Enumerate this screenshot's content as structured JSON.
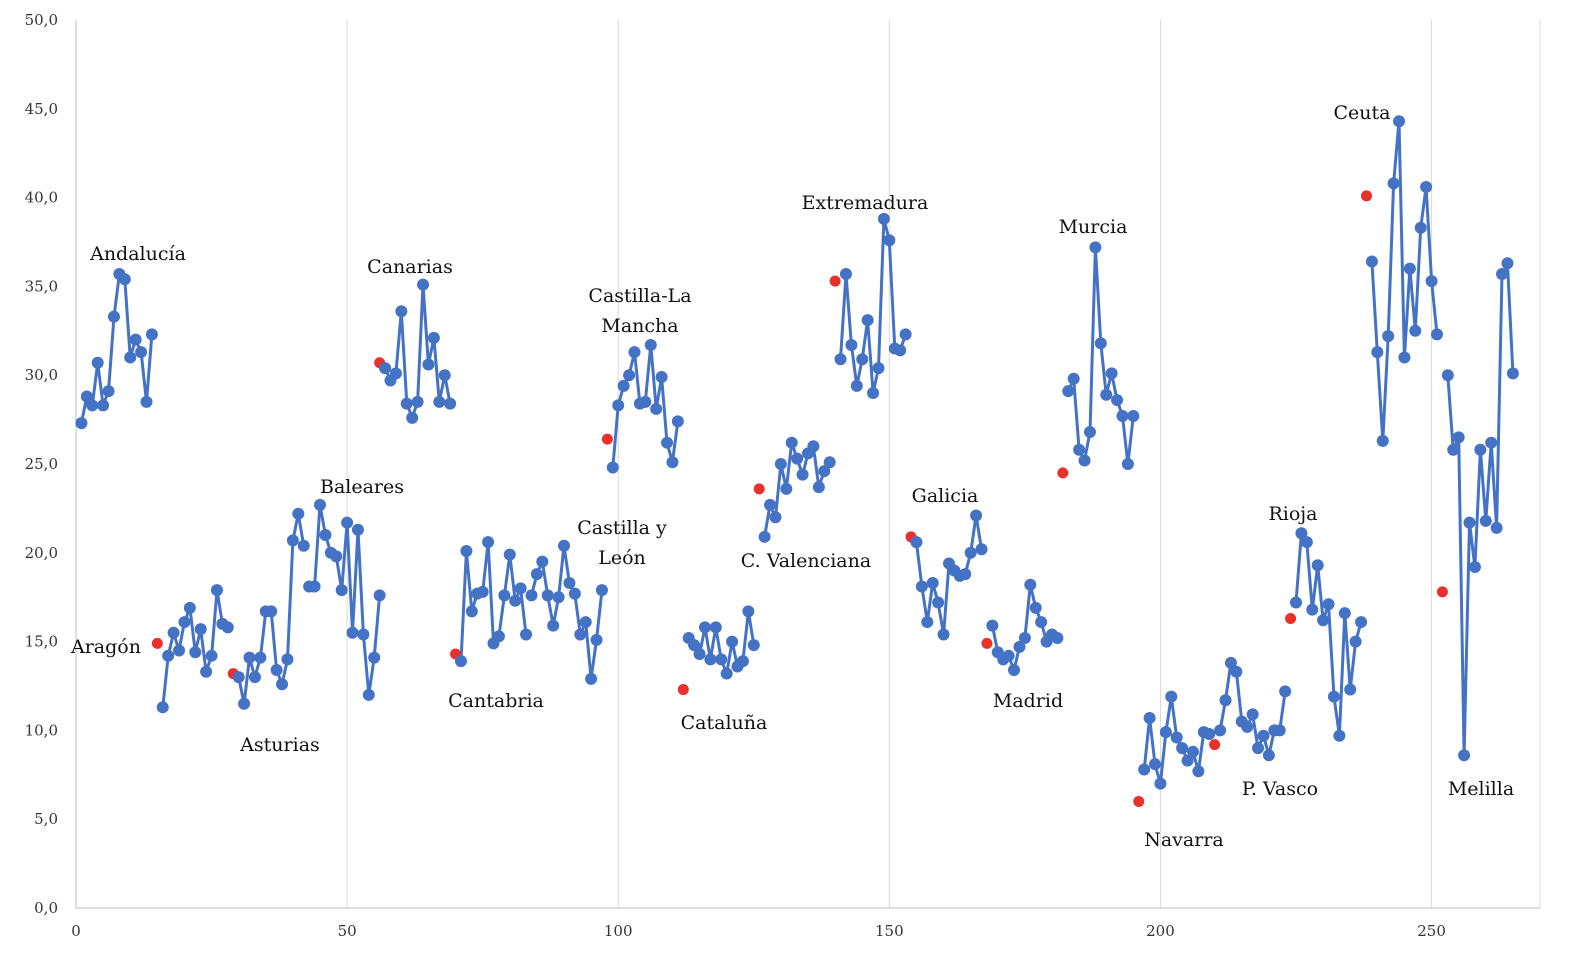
{
  "chart_data": {
    "type": "line",
    "xlim": [
      0,
      270
    ],
    "ylim": [
      0,
      50
    ],
    "xticks": [
      0,
      50,
      100,
      150,
      200,
      250
    ],
    "yticks": [
      0,
      5,
      10,
      15,
      20,
      25,
      30,
      35,
      40,
      45,
      50
    ],
    "ytick_labels": [
      "0,0",
      "5,0",
      "10,0",
      "15,0",
      "20,0",
      "25,0",
      "30,0",
      "35,0",
      "40,0",
      "45,0",
      "50,0"
    ],
    "grid": "vertical",
    "line_color": "#4472C4",
    "highlight_color": "#E8312A",
    "series": [
      {
        "label": "Andalucía",
        "x0": 1,
        "first_highlight": false,
        "values": [
          27.3,
          28.8,
          28.3,
          30.7,
          28.3,
          29.1,
          33.3,
          35.7,
          35.4,
          31.0,
          32.0,
          31.3,
          28.5,
          32.3
        ]
      },
      {
        "label": "Aragón",
        "x0": 15,
        "first_highlight": true,
        "values": [
          14.9,
          11.3,
          14.2,
          15.5,
          14.5,
          16.1,
          16.9,
          14.4,
          15.7,
          13.3,
          14.2,
          17.9,
          16.0,
          15.8
        ]
      },
      {
        "label": "Asturias",
        "x0": 29,
        "first_highlight": true,
        "values": [
          13.2,
          13.0,
          11.5,
          14.1,
          13.0,
          14.1,
          16.7,
          16.7,
          13.4,
          12.6,
          14.0,
          20.7,
          22.2,
          20.4
        ]
      },
      {
        "label": "Baleares",
        "x0": 43,
        "first_highlight": false,
        "values": [
          18.1,
          18.1,
          22.7,
          21.0,
          20.0,
          19.8,
          17.9,
          21.7,
          15.5,
          21.3,
          15.4,
          12.0,
          14.1,
          17.6
        ]
      },
      {
        "label": "Canarias",
        "x0": 56,
        "first_highlight": true,
        "values": [
          30.7,
          30.4,
          29.7,
          30.1,
          33.6,
          28.4,
          27.6,
          28.5,
          35.1,
          30.6,
          32.1,
          28.5,
          30.0,
          28.4
        ]
      },
      {
        "label": "Cantabria",
        "x0": 70,
        "first_highlight": true,
        "values": [
          14.3,
          13.9,
          20.1,
          16.7,
          17.7,
          17.8,
          20.6,
          14.9,
          15.3,
          17.6,
          19.9,
          17.3,
          18.0,
          15.4
        ]
      },
      {
        "label": "Castilla y León",
        "x0": 84,
        "first_highlight": false,
        "values": [
          17.6,
          18.8,
          19.5,
          17.6,
          15.9,
          17.5,
          20.4,
          18.3,
          17.7,
          15.4,
          16.1,
          12.9,
          15.1,
          17.9
        ]
      },
      {
        "label": "Castilla-La Mancha",
        "x0": 98,
        "first_highlight": true,
        "values": [
          26.4,
          24.8,
          28.3,
          29.4,
          30.0,
          31.3,
          28.4,
          28.5,
          31.7,
          28.1,
          29.9,
          26.2,
          25.1,
          27.4
        ]
      },
      {
        "label": "Cataluña",
        "x0": 112,
        "first_highlight": true,
        "values": [
          12.3,
          15.2,
          14.8,
          14.3,
          15.8,
          14.0,
          15.8,
          14.0,
          13.2,
          15.0,
          13.6,
          13.9,
          16.7,
          14.8
        ]
      },
      {
        "label": "C. Valenciana",
        "x0": 126,
        "first_highlight": true,
        "values": [
          23.6,
          20.9,
          22.7,
          22.0,
          25.0,
          23.6,
          26.2,
          25.3,
          24.4,
          25.6,
          26.0,
          23.7,
          24.6,
          25.1
        ]
      },
      {
        "label": "Extremadura",
        "x0": 140,
        "first_highlight": true,
        "values": [
          35.3,
          30.9,
          35.7,
          31.7,
          29.4,
          30.9,
          33.1,
          29.0,
          30.4,
          38.8,
          37.6,
          31.5,
          31.4,
          32.3
        ]
      },
      {
        "label": "Galicia",
        "x0": 154,
        "first_highlight": true,
        "values": [
          20.9,
          20.6,
          18.1,
          16.1,
          18.3,
          17.2,
          15.4,
          19.4,
          19.0,
          18.7,
          18.8,
          20.0,
          22.1,
          20.2
        ]
      },
      {
        "label": "Madrid",
        "x0": 168,
        "first_highlight": true,
        "values": [
          14.9,
          15.9,
          14.4,
          14.0,
          14.2,
          13.4,
          14.7,
          15.2,
          18.2,
          16.9,
          16.1,
          15.0,
          15.4,
          15.2
        ]
      },
      {
        "label": "Murcia",
        "x0": 182,
        "first_highlight": true,
        "values": [
          24.5,
          29.1,
          29.8,
          25.8,
          25.2,
          26.8,
          37.2,
          31.8,
          28.9,
          30.1,
          28.6,
          27.7,
          25.0,
          27.7
        ]
      },
      {
        "label": "Navarra",
        "x0": 196,
        "first_highlight": true,
        "values": [
          6.0,
          7.8,
          10.7,
          8.1,
          7.0,
          9.9,
          11.9,
          9.6,
          9.0,
          8.3,
          8.8,
          7.7,
          9.9,
          9.8
        ]
      },
      {
        "label": "P. Vasco",
        "x0": 210,
        "first_highlight": true,
        "values": [
          9.2,
          10.0,
          11.7,
          13.8,
          13.3,
          10.5,
          10.2,
          10.9,
          9.0,
          9.7,
          8.6,
          10.0,
          10.0,
          12.2
        ]
      },
      {
        "label": "Rioja",
        "x0": 224,
        "first_highlight": true,
        "values": [
          16.3,
          17.2,
          21.1,
          20.6,
          16.8,
          19.3,
          16.2,
          17.1,
          11.9,
          9.7,
          16.6,
          12.3,
          15.0,
          16.1
        ]
      },
      {
        "label": "Ceuta",
        "x0": 238,
        "first_highlight": true,
        "values": [
          40.1,
          36.4,
          31.3,
          26.3,
          32.2,
          40.8,
          44.3,
          31.0,
          36.0,
          32.5,
          38.3,
          40.6,
          35.3,
          32.3
        ]
      },
      {
        "label": "Melilla",
        "x0": 252,
        "first_highlight": true,
        "values": [
          17.8,
          30.0,
          25.8,
          26.5,
          8.6,
          21.7,
          19.2,
          25.8,
          21.8,
          26.2,
          21.4,
          35.7,
          36.3,
          30.1
        ]
      }
    ]
  }
}
